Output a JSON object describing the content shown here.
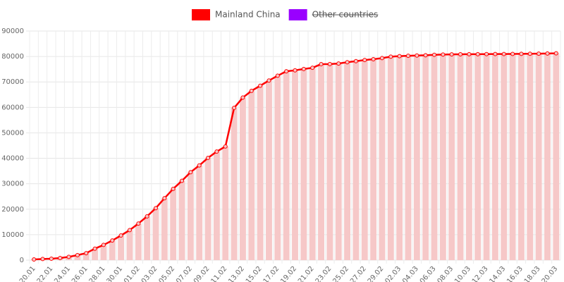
{
  "chart_data": {
    "type": "bar-line",
    "categories": [
      "20.01",
      null,
      "22.01",
      null,
      "24.01",
      null,
      "26.01",
      null,
      "28.01",
      null,
      "30.01",
      null,
      "01.02",
      null,
      "03.02",
      null,
      "05.02",
      null,
      "07.02",
      null,
      "09.02",
      null,
      "11.02",
      null,
      "13.02",
      null,
      "15.02",
      null,
      "17.02",
      null,
      "19.02",
      null,
      "21.02",
      null,
      "23.02",
      null,
      "25.02",
      null,
      "27.02",
      null,
      "29.02",
      null,
      "02.03",
      null,
      "04.03",
      null,
      "06.03",
      null,
      "08.03",
      null,
      "10.03",
      null,
      "12.03",
      null,
      "14.03",
      null,
      "16.03",
      null,
      "18.03",
      null,
      "20.03"
    ],
    "series": [
      {
        "name": "Mainland China",
        "color": "#ff0000",
        "bar_color": "#f6c8c8",
        "values": [
          291,
          440,
          571,
          830,
          1287,
          1975,
          2744,
          4515,
          5974,
          7711,
          9692,
          11791,
          14380,
          17205,
          20438,
          24324,
          28018,
          31161,
          34546,
          37198,
          40171,
          42638,
          44653,
          59804,
          63851,
          66492,
          68500,
          70548,
          72436,
          74185,
          74576,
          75077,
          75550,
          77001,
          77022,
          77241,
          77754,
          78166,
          78600,
          78928,
          79356,
          79932,
          80136,
          80261,
          80380,
          80497,
          80667,
          80768,
          80814,
          80859,
          80879,
          80908,
          80932,
          80954,
          80973,
          80995,
          81029,
          81062,
          81099,
          81171,
          81238
        ]
      },
      {
        "name": "Other countries",
        "color": "#9900ff",
        "hidden": true
      }
    ],
    "ylim": [
      0,
      90000
    ],
    "yticks": [
      0,
      10000,
      20000,
      30000,
      40000,
      50000,
      60000,
      70000,
      80000,
      90000
    ],
    "grid": true
  }
}
